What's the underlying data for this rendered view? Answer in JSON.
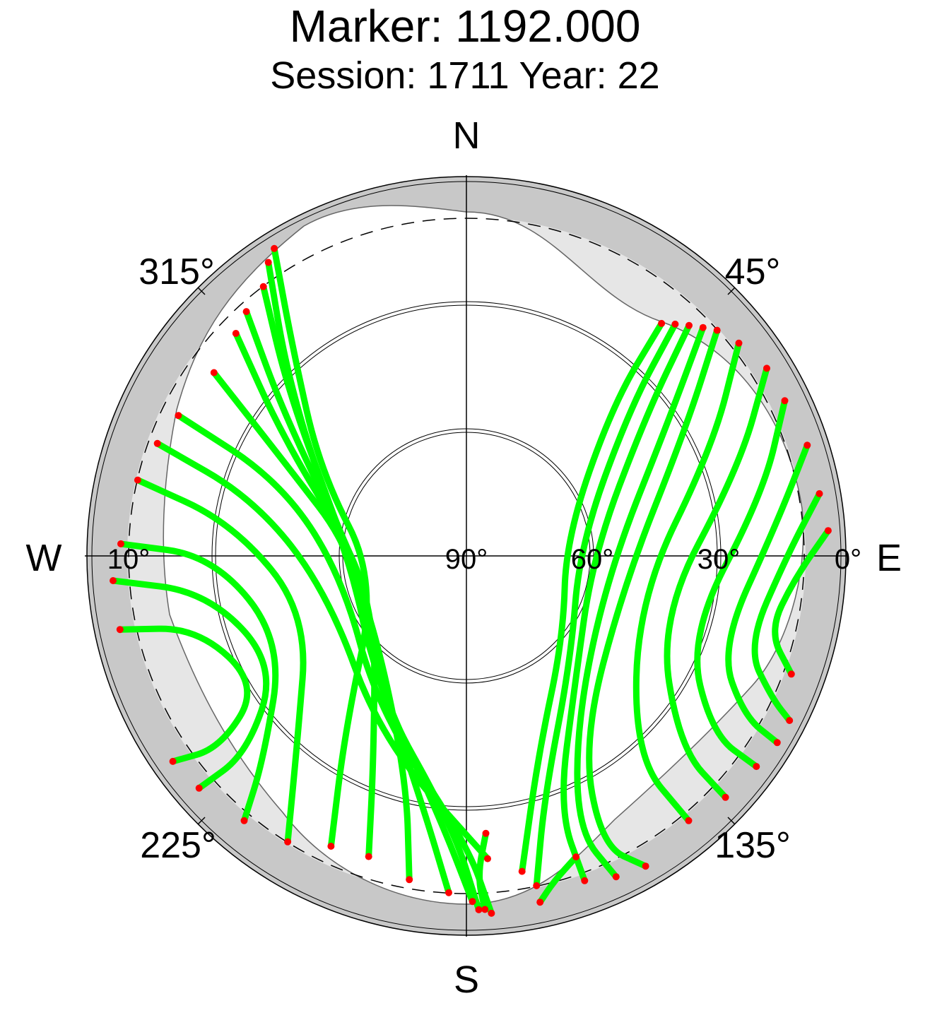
{
  "title": "Marker: 1192.000",
  "subtitle": "Session: 1711 Year: 22",
  "colors": {
    "track": "#00ff00",
    "endpoint": "#ff0000",
    "horizon_mask": "#c8c8c8",
    "outer_band": "#e6e6e6"
  },
  "compass": {
    "n": "N",
    "s": "S",
    "e": "E",
    "w": "W"
  },
  "azimuth_labels": [
    "45°",
    "135°",
    "225°",
    "315°"
  ],
  "elevation_labels": [
    "90°",
    "60°",
    "30°",
    "0°",
    "10°"
  ],
  "chart_data": {
    "type": "scatter",
    "projection": "polar sky plot (azimuth clockwise from North, elevation 90° at centre to 0° at rim)",
    "elevation_rings": [
      60,
      30,
      10,
      0
    ],
    "elevation_mask_deg": 10,
    "series": [
      {
        "values": [
          {
            "tracks": [
              [
                [
                  328,
                  4
                ],
                [
                  320,
                  26
                ],
                [
                  300,
                  50
                ],
                [
                  255,
                  68
                ],
                [
                  215,
                  40
                ],
                [
                  205,
                  14
                ]
              ],
              [
                [
                  326,
                  6
                ],
                [
                  315,
                  30
                ],
                [
                  290,
                  55
                ],
                [
                  240,
                  65
                ],
                [
                  205,
                  38
                ],
                [
                  198,
                  15
                ]
              ],
              [
                [
                  323,
                  10
                ],
                [
                  313,
                  32
                ],
                [
                  285,
                  58
                ],
                [
                  230,
                  62
                ],
                [
                  195,
                  35
                ],
                [
                  190,
                  12
                ]
              ],
              [
                [
                  318,
                  12
                ],
                [
                  308,
                  35
                ],
                [
                  280,
                  60
                ],
                [
                  225,
                  58
                ],
                [
                  190,
                  30
                ],
                [
                  183,
                  10
                ]
              ],
              [
                [
                  314,
                  14
                ],
                [
                  303,
                  38
                ],
                [
                  275,
                  62
                ],
                [
                  220,
                  55
                ],
                [
                  186,
                  28
                ],
                [
                  179,
                  8
                ]
              ],
              [
                [
                  306,
                  16
                ],
                [
                  298,
                  40
                ],
                [
                  270,
                  64
                ],
                [
                  215,
                  52
                ],
                [
                  183,
                  26
                ],
                [
                  178,
                  6
                ]
              ],
              [
                [
                  296,
                  14
                ],
                [
                  292,
                  42
                ],
                [
                  262,
                  60
                ],
                [
                  210,
                  48
                ],
                [
                  180,
                  22
                ],
                [
                  176,
                  5
                ]
              ],
              [
                [
                  290,
                  12
                ],
                [
                  285,
                  38
                ],
                [
                  255,
                  56
                ],
                [
                  205,
                  42
                ],
                [
                  176,
                  18
                ]
              ],
              [
                [
                  283,
                  10
                ],
                [
                  278,
                  34
                ],
                [
                  250,
                  50
                ],
                [
                  222,
                  30
                ],
                [
                  212,
                  10
                ]
              ],
              [
                [
                  272,
                  8
                ],
                [
                  270,
                  30
                ],
                [
                  245,
                  42
                ],
                [
                  225,
                  22
                ],
                [
                  220,
                  8
                ]
              ],
              [
                [
                  266,
                  6
                ],
                [
                  262,
                  28
                ],
                [
                  240,
                  38
                ],
                [
                  228,
                  20
                ],
                [
                  229,
                  6
                ]
              ],
              [
                [
                  258,
                  6
                ],
                [
                  255,
                  24
                ],
                [
                  238,
                  32
                ],
                [
                  232,
                  16
                ],
                [
                  235,
                  5
                ]
              ],
              [
                [
                  40,
                  18
                ],
                [
                  44,
                  40
                ],
                [
                  80,
                  66
                ],
                [
                  130,
                  60
                ],
                [
                  160,
                  40
                ],
                [
                  170,
                  14
                ]
              ],
              [
                [
                  42,
                  16
                ],
                [
                  48,
                  38
                ],
                [
                  85,
                  63
                ],
                [
                  135,
                  55
                ],
                [
                  162,
                  30
                ],
                [
                  168,
                  10
                ]
              ],
              [
                [
                  44,
                  14
                ],
                [
                  52,
                  36
                ],
                [
                  90,
                  60
                ],
                [
                  140,
                  50
                ],
                [
                  160,
                  26
                ],
                [
                  160,
                  8
                ]
              ],
              [
                [
                  46,
                  12
                ],
                [
                  56,
                  32
                ],
                [
                  96,
                  56
                ],
                [
                  145,
                  44
                ],
                [
                  158,
                  20
                ],
                [
                  155,
                  6
                ]
              ],
              [
                [
                  48,
                  10
                ],
                [
                  60,
                  30
                ],
                [
                  100,
                  52
                ],
                [
                  148,
                  38
                ],
                [
                  155,
                  14
                ],
                [
                  150,
                  5
                ]
              ],
              [
                [
                  52,
                  8
                ],
                [
                  66,
                  26
                ],
                [
                  104,
                  48
                ],
                [
                  140,
                  28
                ],
                [
                  140,
                  8
                ]
              ],
              [
                [
                  58,
                  6
                ],
                [
                  72,
                  22
                ],
                [
                  108,
                  42
                ],
                [
                  132,
                  22
                ],
                [
                  133,
                  6
                ]
              ],
              [
                [
                  64,
                  6
                ],
                [
                  78,
                  18
                ],
                [
                  110,
                  34
                ],
                [
                  126,
                  18
                ],
                [
                  126,
                  5
                ]
              ],
              [
                [
                  72,
                  5
                ],
                [
                  84,
                  16
                ],
                [
                  110,
                  26
                ],
                [
                  120,
                  14
                ],
                [
                  121,
                  4
                ]
              ],
              [
                [
                  80,
                  5
                ],
                [
                  90,
                  14
                ],
                [
                  108,
                  20
                ],
                [
                  115,
                  10
                ],
                [
                  117,
                  4
                ]
              ],
              [
                [
                  86,
                  4
                ],
                [
                  94,
                  12
                ],
                [
                  104,
                  16
                ],
                [
                  110,
                  8
                ]
              ],
              [
                [
                  160,
                  14
                ],
                [
                  165,
                  10
                ],
                [
                  168,
                  6
                ]
              ],
              [
                [
                  176,
                  24
                ],
                [
                  178,
                  14
                ],
                [
                  177,
                  6
                ]
              ]
            ]
          }
        ]
      }
    ]
  }
}
